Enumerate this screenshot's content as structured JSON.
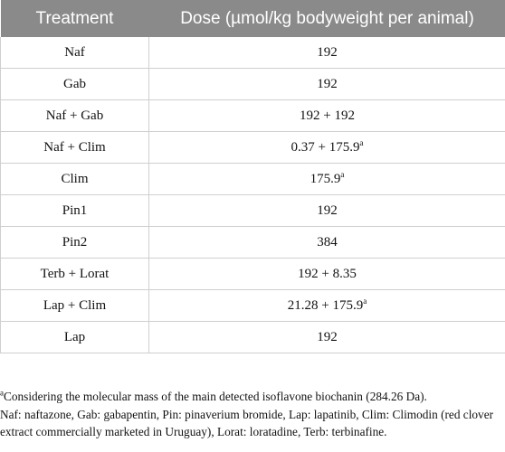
{
  "table": {
    "headers": [
      "Treatment",
      "Dose (µmol/kg bodyweight per animal)"
    ],
    "rows": [
      {
        "treatment": "Naf",
        "dose": "192",
        "sup": ""
      },
      {
        "treatment": "Gab",
        "dose": "192",
        "sup": ""
      },
      {
        "treatment": "Naf + Gab",
        "dose": "192 + 192",
        "sup": ""
      },
      {
        "treatment": "Naf + Clim",
        "dose": "0.37 + 175.9",
        "sup": "a"
      },
      {
        "treatment": "Clim",
        "dose": "175.9",
        "sup": "a"
      },
      {
        "treatment": "Pin1",
        "dose": "192",
        "sup": ""
      },
      {
        "treatment": "Pin2",
        "dose": "384",
        "sup": ""
      },
      {
        "treatment": "Terb + Lorat",
        "dose": "192 + 8.35",
        "sup": ""
      },
      {
        "treatment": "Lap + Clim",
        "dose": "21.28 + 175.9",
        "sup": "a"
      },
      {
        "treatment": "Lap",
        "dose": "192",
        "sup": ""
      }
    ]
  },
  "footnotes": {
    "a_marker": "a",
    "a_text": "Considering the molecular mass of the main detected isoflavone biochanin (284.26 Da).",
    "abbreviations": "Naf: naftazone, Gab: gabapentin, Pin: pinaverium bromide, Lap: lapatinib, Clim: Climodin (red clover extract commercially marketed in Uruguay), Lorat: loratadine, Terb: terbinafine."
  }
}
